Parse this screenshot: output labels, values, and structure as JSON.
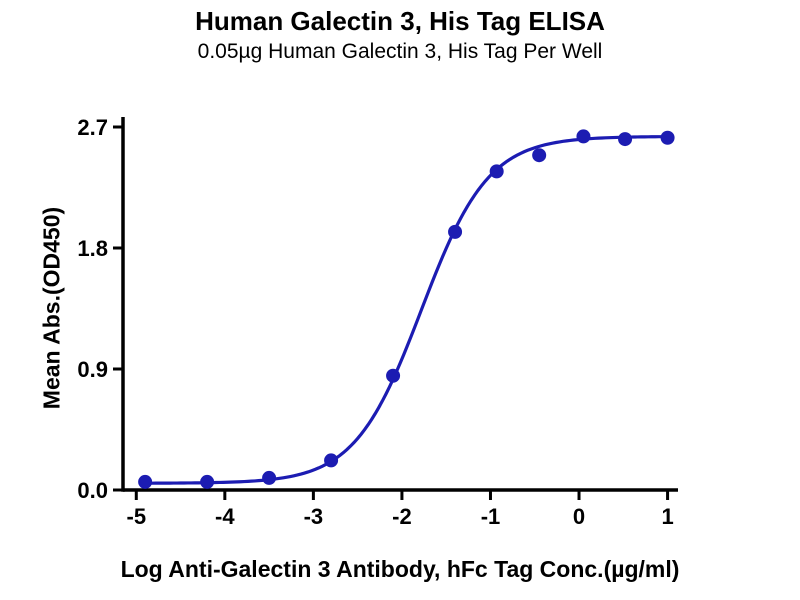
{
  "title": "Human Galectin 3, His Tag ELISA",
  "subtitle": "0.05µg Human Galectin 3, His Tag Per Well",
  "chart_data": {
    "type": "scatter",
    "title": "Human Galectin 3, His Tag ELISA",
    "subtitle": "0.05µg Human Galectin 3, His Tag Per Well",
    "xlabel": "Log Anti-Galectin 3 Antibody, hFc Tag Conc.(µg/ml)",
    "ylabel": "Mean Abs.(OD450)",
    "x": [
      -4.9,
      -4.2,
      -3.5,
      -2.8,
      -2.1,
      -1.4,
      -0.93,
      -0.45,
      0.05,
      0.52,
      1.0
    ],
    "y": [
      0.06,
      0.06,
      0.09,
      0.22,
      0.85,
      1.92,
      2.37,
      2.49,
      2.63,
      2.61,
      2.62
    ],
    "xticks": [
      -5,
      -4,
      -3,
      -2,
      -1,
      0,
      1
    ],
    "yticks": [
      0.0,
      0.9,
      1.8,
      2.7
    ],
    "xlim": [
      -5.15,
      1.05
    ],
    "ylim": [
      0,
      2.7
    ],
    "grid": false,
    "legend": "none",
    "marker_color": "#1c1cb2",
    "line_color": "#1c1cb2",
    "axis_color": "#000000",
    "curve_fit": {
      "model": "4PL",
      "bottom": 0.05,
      "top": 2.63,
      "logEC50": -1.78,
      "hill": 1.15
    }
  }
}
